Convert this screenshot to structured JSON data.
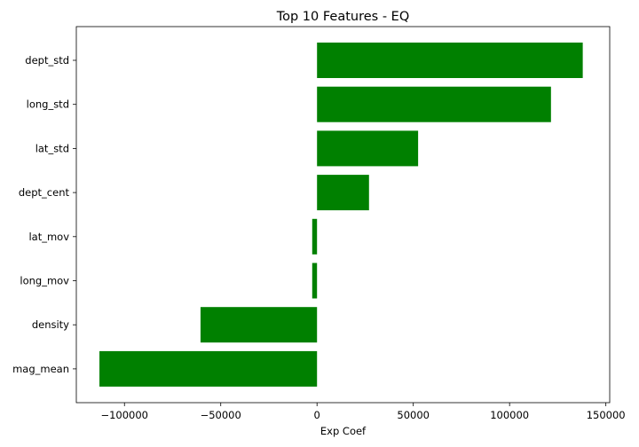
{
  "chart_data": {
    "type": "bar",
    "orientation": "horizontal",
    "title": "Top 10 Features - EQ",
    "xlabel": "Exp Coef",
    "ylabel": "",
    "categories": [
      "dept_std",
      "long_std",
      "lat_std",
      "dept_cent",
      "lat_mov",
      "long_mov",
      "density",
      "mag_mean"
    ],
    "values": [
      138000,
      121500,
      52500,
      27000,
      -2500,
      -2500,
      -60500,
      -113000
    ],
    "xlim": [
      -125000,
      152000
    ],
    "xticks": [
      -100000,
      -50000,
      0,
      50000,
      100000,
      150000
    ],
    "xtick_labels": [
      "−100000",
      "−50000",
      "0",
      "50000",
      "100000",
      "150000"
    ],
    "grid": false,
    "legend": "none",
    "colors": {
      "bar": "#008000",
      "axis": "#000000",
      "background": "#ffffff"
    }
  }
}
